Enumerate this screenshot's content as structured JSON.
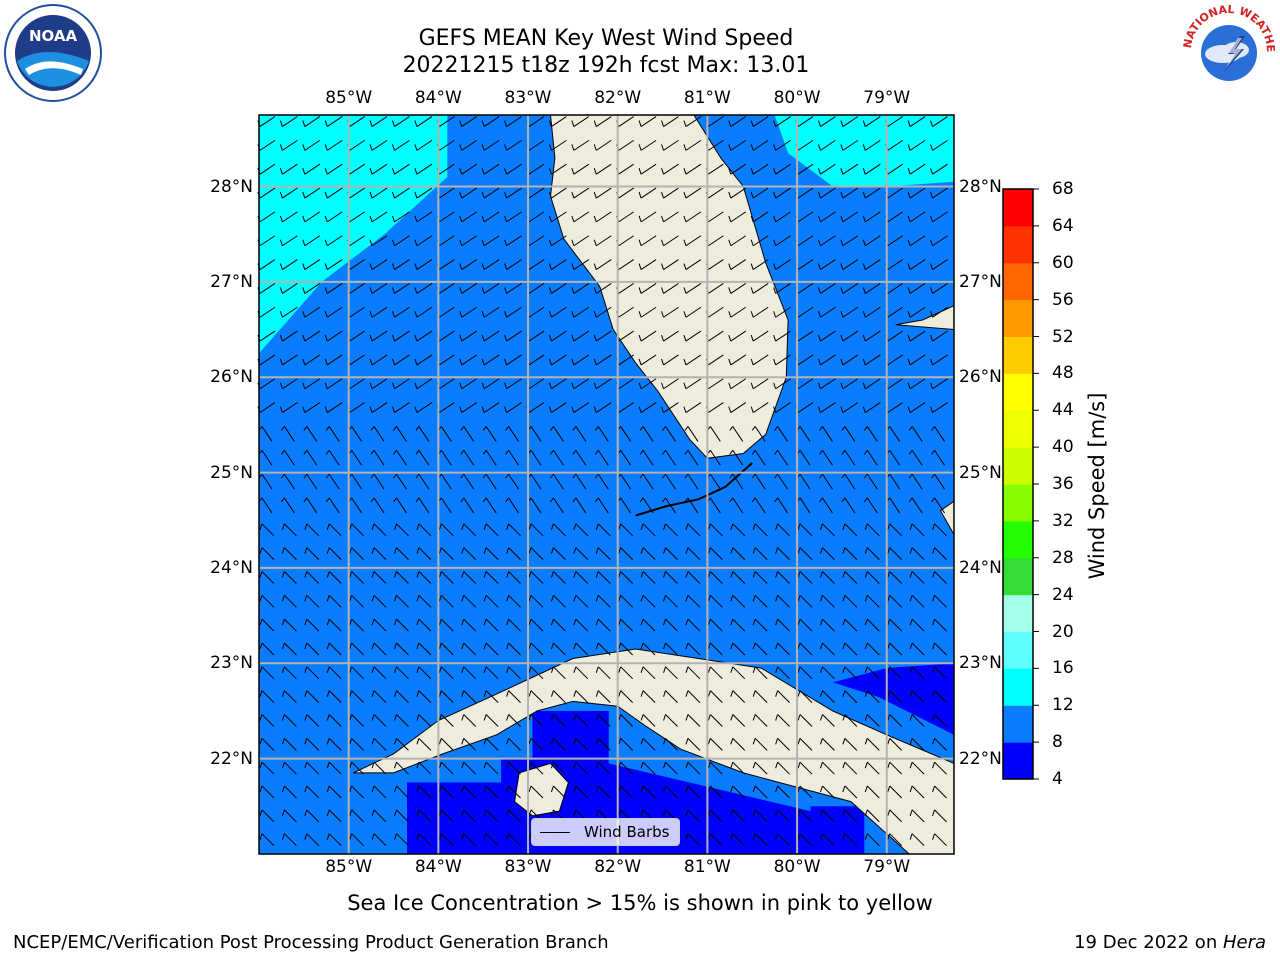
{
  "header": {
    "title_line1": "GEFS MEAN Key West Wind Speed",
    "title_line2": "20221215 t18z 192h fcst   Max: 13.01"
  },
  "map": {
    "lon_ticks": [
      "85°W",
      "84°W",
      "83°W",
      "82°W",
      "81°W",
      "80°W",
      "79°W"
    ],
    "lat_ticks": [
      "28°N",
      "27°N",
      "26°N",
      "25°N",
      "24°N",
      "23°N",
      "22°N"
    ],
    "extent": {
      "lon_min": -86.0,
      "lon_max": -78.25,
      "lat_min": 21.0,
      "lat_max": 28.75
    },
    "land_color": "#eeeddd",
    "grid_color": "#b3b3b3",
    "legend_label": "Wind Barbs",
    "wind_barb_icon": "wind-barb-icon"
  },
  "colorbar": {
    "title": "Wind Speed [m/s]",
    "ticks": [
      "68",
      "64",
      "60",
      "56",
      "52",
      "48",
      "44",
      "40",
      "36",
      "32",
      "28",
      "24",
      "20",
      "16",
      "12",
      "8",
      "4"
    ],
    "levels": [
      4,
      8,
      12,
      16,
      20,
      24,
      28,
      32,
      36,
      40,
      44,
      48,
      52,
      56,
      60,
      64,
      68
    ],
    "colors": [
      "#0000ff",
      "#0a7dff",
      "#00ffff",
      "#5dffff",
      "#a2ffe8",
      "#33dd33",
      "#22ff00",
      "#88ff00",
      "#ccff00",
      "#eeff00",
      "#ffff00",
      "#ffcc00",
      "#ff9900",
      "#ff6600",
      "#ff3300",
      "#ff0000"
    ]
  },
  "note": "Sea Ice Concentration > 15% is shown in pink to yellow",
  "footer": {
    "left": "NCEP/EMC/Verification Post Processing Product Generation Branch",
    "right_prefix": "19 Dec 2022 on ",
    "right_host": "Hera"
  },
  "logos": {
    "left": "noaa-logo",
    "right": "national-weather-service-logo",
    "nws_text": "NATIONAL WEATHER SERVICE"
  }
}
